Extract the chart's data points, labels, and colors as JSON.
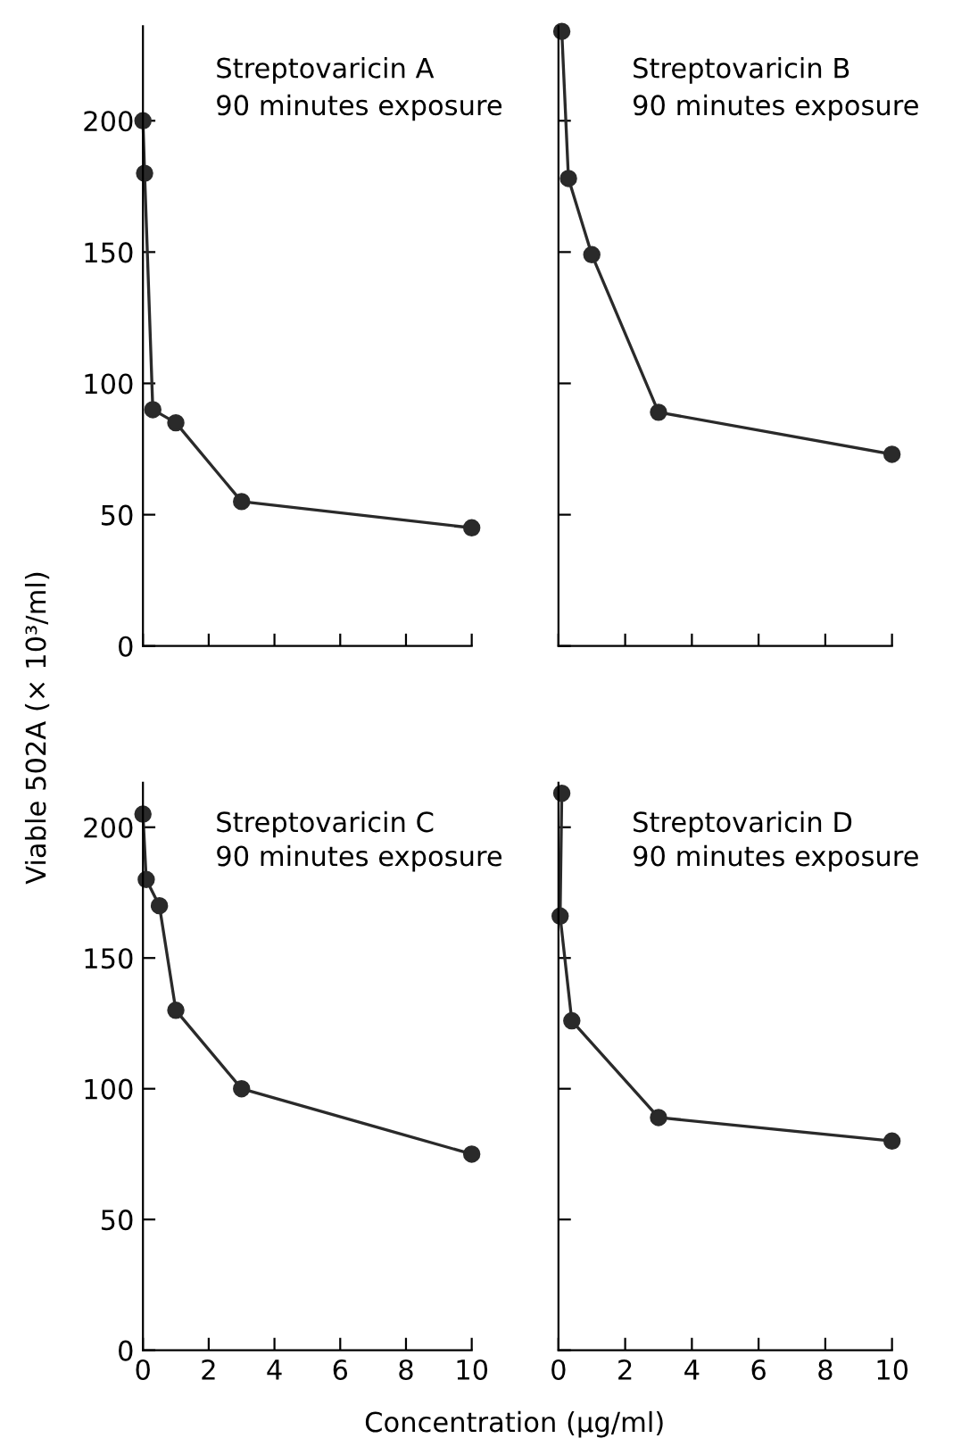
{
  "chart_data": [
    {
      "type": "line",
      "title": "Streptovaricin A",
      "subtitle": "90 minutes exposure",
      "ylabel": "Viable 502A (× 10³/ml)",
      "x": [
        0,
        0.05,
        0.3,
        1,
        3,
        10
      ],
      "series": [
        {
          "color": "#2a2a2a",
          "values": [
            200,
            180,
            90,
            85,
            55,
            45
          ]
        }
      ],
      "xlim": [
        0,
        10
      ],
      "xticks": [
        0,
        2,
        4,
        6,
        8,
        10
      ],
      "ylim": [
        0,
        236
      ],
      "yticks": [
        0,
        50,
        100,
        150,
        200
      ],
      "tick_labels": "y",
      "marker": "circle",
      "line_style": "solid",
      "grid": false
    },
    {
      "type": "line",
      "title": "Streptovaricin B",
      "subtitle": "90 minutes exposure",
      "x": [
        0.1,
        0.3,
        1,
        3,
        10
      ],
      "series": [
        {
          "color": "#2a2a2a",
          "values": [
            234,
            178,
            149,
            89,
            73
          ]
        }
      ],
      "xlim": [
        0,
        10
      ],
      "xticks": [
        0,
        2,
        4,
        6,
        8,
        10
      ],
      "ylim": [
        0,
        236
      ],
      "yticks": [
        0,
        50,
        100,
        150,
        200
      ],
      "tick_labels": false,
      "marker": "circle",
      "line_style": "solid",
      "grid": false
    },
    {
      "type": "line",
      "title": "Streptovaricin C",
      "subtitle": "90 minutes exposure",
      "xlabel": "Concentration (μg/ml)",
      "x": [
        0,
        0.1,
        0.5,
        1,
        3,
        10
      ],
      "series": [
        {
          "color": "#2a2a2a",
          "values": [
            205,
            180,
            170,
            130,
            100,
            75
          ]
        }
      ],
      "xlim": [
        0,
        10
      ],
      "xticks": [
        0,
        2,
        4,
        6,
        8,
        10
      ],
      "ylim": [
        0,
        217
      ],
      "yticks": [
        0,
        50,
        100,
        150,
        200
      ],
      "marker": "circle",
      "line_style": "solid",
      "grid": false
    },
    {
      "type": "line",
      "title": "Streptovaricin D",
      "subtitle": "90 minutes exposure",
      "x": [
        0.1,
        0.05,
        0.4,
        3,
        10
      ],
      "series": [
        {
          "color": "#2a2a2a",
          "values": [
            213,
            166,
            126,
            89,
            80
          ]
        }
      ],
      "xlim": [
        0,
        10
      ],
      "xticks": [
        0,
        2,
        4,
        6,
        8,
        10
      ],
      "ylim": [
        0,
        217
      ],
      "yticks": [
        0,
        50,
        100,
        150,
        200
      ],
      "tick_labels": "x",
      "marker": "circle",
      "line_style": "solid",
      "grid": false
    }
  ]
}
